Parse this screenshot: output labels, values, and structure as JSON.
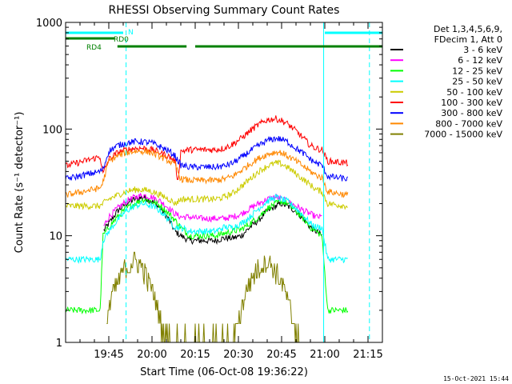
{
  "chart_data": {
    "type": "line",
    "title": "RHESSI Observing Summary Count Rates",
    "xlabel": "Start Time (06-Oct-08 19:36:22)",
    "ylabel": "Count Rate (s⁻¹ detector⁻¹)",
    "yscale": "log",
    "ylim": [
      1,
      1000
    ],
    "xlim_min": [
      -5,
      105
    ],
    "x_ticks": [
      {
        "m": 10,
        "label": "19:45"
      },
      {
        "m": 25,
        "label": "20:00"
      },
      {
        "m": 40,
        "label": "20:15"
      },
      {
        "m": 55,
        "label": "20:30"
      },
      {
        "m": 70,
        "label": "20:45"
      },
      {
        "m": 85,
        "label": "21:00"
      },
      {
        "m": 100,
        "label": "21:15"
      }
    ],
    "y_ticks": [
      {
        "v": 1,
        "label": "1"
      },
      {
        "v": 10,
        "label": "10"
      },
      {
        "v": 100,
        "label": "100"
      },
      {
        "v": 1000,
        "label": "1000"
      }
    ],
    "info_lines": [
      "Det 1,3,4,5,6,9,",
      "FDecim 1, Att 0"
    ],
    "series": [
      {
        "name": "3 - 6 keV",
        "color": "#000000",
        "points": [
          [
            -5,
            null
          ],
          [
            7,
            null
          ],
          [
            8,
            11
          ],
          [
            10,
            13
          ],
          [
            13,
            17
          ],
          [
            16,
            20
          ],
          [
            19,
            22
          ],
          [
            22,
            23
          ],
          [
            25,
            21
          ],
          [
            28,
            18
          ],
          [
            31,
            14
          ],
          [
            33,
            11
          ],
          [
            35,
            10
          ],
          [
            38,
            9
          ],
          [
            41,
            9
          ],
          [
            44,
            9
          ],
          [
            47,
            9
          ],
          [
            50,
            9.5
          ],
          [
            53,
            9.5
          ],
          [
            56,
            10
          ],
          [
            59,
            12
          ],
          [
            62,
            14
          ],
          [
            65,
            17
          ],
          [
            68,
            19
          ],
          [
            70,
            20
          ],
          [
            72,
            19
          ],
          [
            75,
            17
          ],
          [
            78,
            14
          ],
          [
            80,
            12
          ],
          [
            82,
            11
          ],
          [
            84,
            10
          ],
          [
            86,
            null
          ],
          [
            105,
            null
          ]
        ]
      },
      {
        "name": "6 - 12 keV",
        "color": "#ff00ff",
        "points": [
          [
            -5,
            null
          ],
          [
            7,
            null
          ],
          [
            8,
            12
          ],
          [
            10,
            15
          ],
          [
            13,
            18
          ],
          [
            16,
            21
          ],
          [
            19,
            23
          ],
          [
            22,
            24
          ],
          [
            25,
            23
          ],
          [
            28,
            21
          ],
          [
            31,
            18
          ],
          [
            33,
            16
          ],
          [
            35,
            15
          ],
          [
            38,
            15
          ],
          [
            41,
            14.5
          ],
          [
            44,
            14.5
          ],
          [
            47,
            14.5
          ],
          [
            50,
            14.5
          ],
          [
            53,
            15
          ],
          [
            56,
            16
          ],
          [
            59,
            18
          ],
          [
            62,
            20
          ],
          [
            65,
            22
          ],
          [
            68,
            23
          ],
          [
            70,
            22
          ],
          [
            72,
            21
          ],
          [
            75,
            19
          ],
          [
            78,
            17
          ],
          [
            80,
            16
          ],
          [
            82,
            15
          ],
          [
            84,
            15
          ],
          [
            86,
            null
          ],
          [
            105,
            null
          ]
        ]
      },
      {
        "name": "12 - 25 keV",
        "color": "#00ff00",
        "points": [
          [
            -5,
            2
          ],
          [
            7,
            2
          ],
          [
            8,
            10
          ],
          [
            10,
            12
          ],
          [
            13,
            15
          ],
          [
            16,
            18
          ],
          [
            19,
            20
          ],
          [
            22,
            22
          ],
          [
            25,
            21
          ],
          [
            28,
            19
          ],
          [
            31,
            16
          ],
          [
            33,
            14
          ],
          [
            35,
            12
          ],
          [
            38,
            10
          ],
          [
            41,
            10
          ],
          [
            44,
            10
          ],
          [
            47,
            10
          ],
          [
            50,
            10.5
          ],
          [
            53,
            11
          ],
          [
            56,
            11.5
          ],
          [
            59,
            13
          ],
          [
            62,
            15
          ],
          [
            65,
            18
          ],
          [
            68,
            20
          ],
          [
            70,
            21
          ],
          [
            72,
            20
          ],
          [
            75,
            17
          ],
          [
            78,
            14
          ],
          [
            80,
            12
          ],
          [
            82,
            11
          ],
          [
            84,
            10
          ],
          [
            86,
            2
          ],
          [
            93,
            2
          ],
          [
            105,
            null
          ]
        ]
      },
      {
        "name": "25 - 50 keV",
        "color": "#00ffff",
        "points": [
          [
            -5,
            6
          ],
          [
            7,
            6
          ],
          [
            8,
            9
          ],
          [
            10,
            11
          ],
          [
            13,
            14
          ],
          [
            16,
            17
          ],
          [
            19,
            19
          ],
          [
            22,
            20
          ],
          [
            25,
            19
          ],
          [
            28,
            17
          ],
          [
            31,
            14
          ],
          [
            33,
            12
          ],
          [
            35,
            12
          ],
          [
            38,
            11
          ],
          [
            41,
            11
          ],
          [
            44,
            11
          ],
          [
            47,
            11
          ],
          [
            50,
            12
          ],
          [
            53,
            12
          ],
          [
            56,
            13
          ],
          [
            59,
            15
          ],
          [
            62,
            18
          ],
          [
            65,
            21
          ],
          [
            68,
            23
          ],
          [
            70,
            22
          ],
          [
            72,
            21
          ],
          [
            75,
            18
          ],
          [
            78,
            15
          ],
          [
            80,
            13
          ],
          [
            82,
            12
          ],
          [
            84,
            12
          ],
          [
            86,
            6
          ],
          [
            93,
            6
          ],
          [
            105,
            null
          ]
        ]
      },
      {
        "name": "50 - 100 keV",
        "color": "#cccc00",
        "points": [
          [
            -5,
            19
          ],
          [
            7,
            19
          ],
          [
            8,
            20
          ],
          [
            10,
            22
          ],
          [
            13,
            24
          ],
          [
            16,
            26
          ],
          [
            19,
            27
          ],
          [
            22,
            27
          ],
          [
            25,
            26
          ],
          [
            28,
            24
          ],
          [
            31,
            22
          ],
          [
            33,
            20
          ],
          [
            35,
            22
          ],
          [
            38,
            22
          ],
          [
            41,
            22
          ],
          [
            44,
            22
          ],
          [
            47,
            22
          ],
          [
            50,
            23
          ],
          [
            53,
            25
          ],
          [
            56,
            29
          ],
          [
            59,
            34
          ],
          [
            62,
            40
          ],
          [
            65,
            45
          ],
          [
            68,
            48
          ],
          [
            70,
            47
          ],
          [
            72,
            44
          ],
          [
            75,
            38
          ],
          [
            78,
            33
          ],
          [
            80,
            30
          ],
          [
            82,
            27
          ],
          [
            84,
            26
          ],
          [
            86,
            20
          ],
          [
            93,
            19
          ],
          [
            105,
            null
          ]
        ]
      },
      {
        "name": "100 - 300 keV",
        "color": "#ff0000",
        "points": [
          [
            -5,
            45
          ],
          [
            7,
            55
          ],
          [
            8,
            38
          ],
          [
            10,
            52
          ],
          [
            13,
            60
          ],
          [
            16,
            64
          ],
          [
            19,
            66
          ],
          [
            22,
            66
          ],
          [
            25,
            64
          ],
          [
            28,
            60
          ],
          [
            31,
            55
          ],
          [
            33,
            50
          ],
          [
            34,
            32
          ],
          [
            35,
            62
          ],
          [
            38,
            64
          ],
          [
            41,
            64
          ],
          [
            44,
            64
          ],
          [
            47,
            64
          ],
          [
            50,
            66
          ],
          [
            53,
            72
          ],
          [
            56,
            82
          ],
          [
            59,
            96
          ],
          [
            62,
            110
          ],
          [
            65,
            122
          ],
          [
            68,
            125
          ],
          [
            70,
            120
          ],
          [
            72,
            112
          ],
          [
            75,
            96
          ],
          [
            78,
            80
          ],
          [
            80,
            70
          ],
          [
            82,
            66
          ],
          [
            84,
            64
          ],
          [
            86,
            50
          ],
          [
            93,
            48
          ],
          [
            105,
            null
          ]
        ]
      },
      {
        "name": "300 - 800 keV",
        "color": "#0000ff",
        "points": [
          [
            -5,
            34
          ],
          [
            7,
            40
          ],
          [
            8,
            42
          ],
          [
            10,
            62
          ],
          [
            13,
            70
          ],
          [
            16,
            74
          ],
          [
            19,
            76
          ],
          [
            22,
            76
          ],
          [
            25,
            74
          ],
          [
            28,
            68
          ],
          [
            31,
            62
          ],
          [
            33,
            56
          ],
          [
            35,
            46
          ],
          [
            38,
            44
          ],
          [
            41,
            44
          ],
          [
            44,
            44
          ],
          [
            47,
            44
          ],
          [
            50,
            45
          ],
          [
            53,
            48
          ],
          [
            56,
            54
          ],
          [
            59,
            62
          ],
          [
            62,
            70
          ],
          [
            65,
            78
          ],
          [
            68,
            82
          ],
          [
            70,
            80
          ],
          [
            72,
            76
          ],
          [
            75,
            66
          ],
          [
            78,
            58
          ],
          [
            80,
            52
          ],
          [
            82,
            48
          ],
          [
            84,
            46
          ],
          [
            86,
            36
          ],
          [
            93,
            34
          ],
          [
            105,
            null
          ]
        ]
      },
      {
        "name": "800 - 7000 keV",
        "color": "#ff8800",
        "points": [
          [
            -5,
            24
          ],
          [
            7,
            28
          ],
          [
            8,
            32
          ],
          [
            10,
            50
          ],
          [
            13,
            56
          ],
          [
            16,
            60
          ],
          [
            19,
            62
          ],
          [
            22,
            62
          ],
          [
            25,
            60
          ],
          [
            28,
            55
          ],
          [
            31,
            50
          ],
          [
            33,
            46
          ],
          [
            35,
            34
          ],
          [
            38,
            33
          ],
          [
            41,
            33
          ],
          [
            44,
            33
          ],
          [
            47,
            33
          ],
          [
            50,
            34
          ],
          [
            53,
            36
          ],
          [
            56,
            41
          ],
          [
            59,
            47
          ],
          [
            62,
            53
          ],
          [
            65,
            58
          ],
          [
            68,
            61
          ],
          [
            70,
            60
          ],
          [
            72,
            56
          ],
          [
            75,
            50
          ],
          [
            78,
            44
          ],
          [
            80,
            40
          ],
          [
            82,
            37
          ],
          [
            84,
            35
          ],
          [
            86,
            26
          ],
          [
            93,
            24
          ],
          [
            105,
            null
          ]
        ]
      },
      {
        "name": "7000 - 15000 keV",
        "color": "#808000",
        "points": [
          [
            -5,
            null
          ],
          [
            8,
            null
          ],
          [
            9,
            1.5
          ],
          [
            11,
            2.5
          ],
          [
            13,
            3.5
          ],
          [
            15,
            4.5
          ],
          [
            17,
            5
          ],
          [
            19,
            5.5
          ],
          [
            21,
            5
          ],
          [
            23,
            4
          ],
          [
            25,
            3
          ],
          [
            27,
            2
          ],
          [
            29,
            1.3
          ],
          [
            31,
            1
          ],
          [
            53,
            1
          ],
          [
            55,
            1.5
          ],
          [
            57,
            2.5
          ],
          [
            59,
            3.5
          ],
          [
            61,
            4.5
          ],
          [
            63,
            5
          ],
          [
            65,
            5.5
          ],
          [
            67,
            5
          ],
          [
            69,
            4
          ],
          [
            71,
            3
          ],
          [
            73,
            2
          ],
          [
            75,
            1.3
          ],
          [
            76,
            1
          ],
          [
            105,
            null
          ]
        ]
      }
    ],
    "attenuator_bars": [
      {
        "label": "N",
        "color": "#00ffff",
        "segments": [
          [
            -5,
            15
          ],
          [
            85,
            105
          ]
        ]
      },
      {
        "label": "RD0",
        "color": "#008000",
        "segments": [
          [
            -5,
            12
          ]
        ]
      },
      {
        "label": "RD4",
        "color": "#008000",
        "segments": [
          [
            13,
            37
          ],
          [
            40,
            105
          ]
        ]
      }
    ],
    "vlines_solid": [
      84.6
    ],
    "vlines_dashed": [
      16,
      100.5
    ],
    "timestamp": "15-Oct-2021 15:44"
  }
}
